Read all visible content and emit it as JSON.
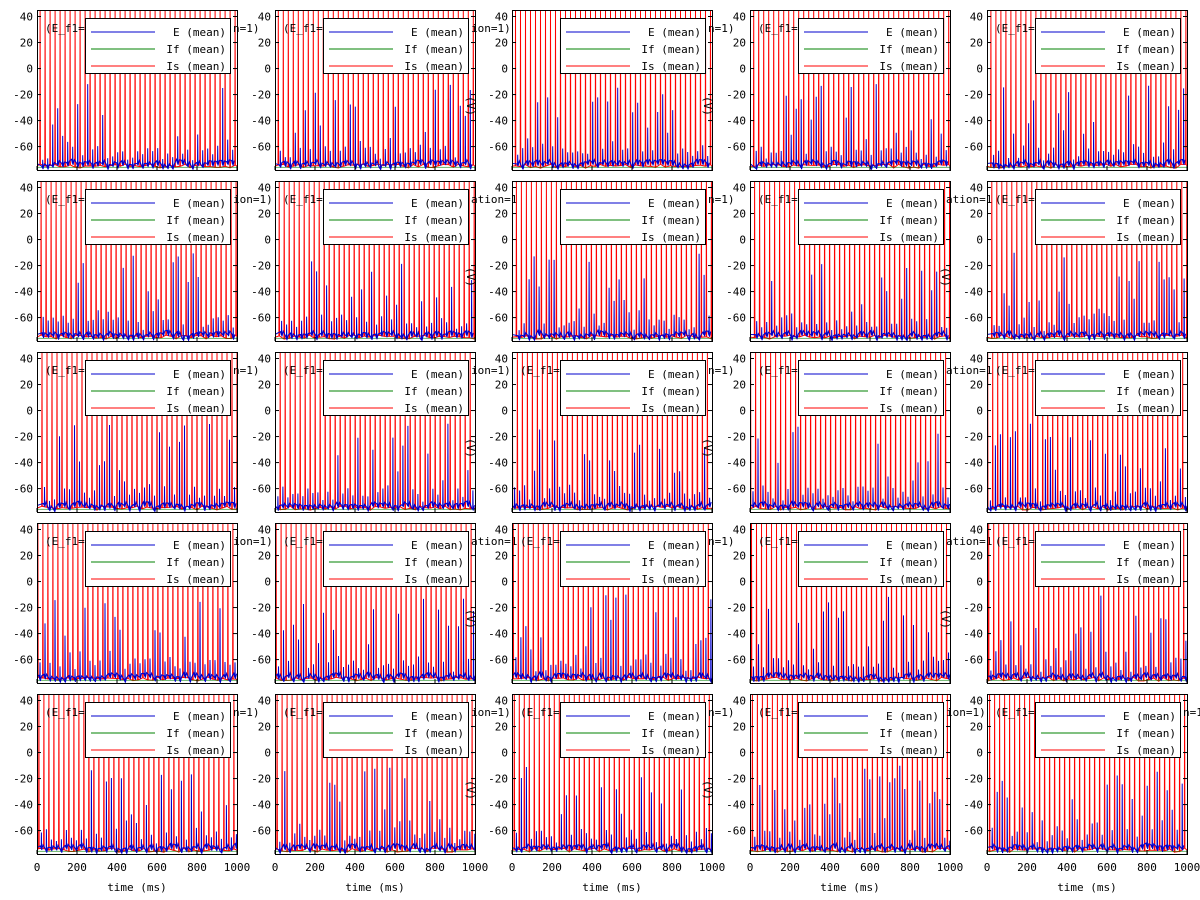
{
  "figure": {
    "grid": {
      "rows": 5,
      "cols": 5
    },
    "colors": {
      "E": "#0000cc",
      "If": "#008000",
      "Is": "#ff0000",
      "frame": "#000000"
    }
  },
  "chart_data": {
    "type": "line",
    "layout": "small-multiples-5x5",
    "xlabel": "time (ms)",
    "ylabel": "",
    "xlim": [
      0,
      1000
    ],
    "ylim": [
      -78,
      45
    ],
    "x_ticks": [
      "0",
      "200",
      "400",
      "600",
      "800",
      "1000"
    ],
    "y_ticks": [
      "40",
      "20",
      "0",
      "-20",
      "-40",
      "-60"
    ],
    "grid": false,
    "legend": {
      "placement": "top-right",
      "entries": [
        "E (mean)",
        "If (mean)",
        "Is (mean)"
      ]
    },
    "series": [
      {
        "name": "E (mean)",
        "description_values": {
          "baseline_mV": -73,
          "spike_peak_range_mV": [
            -60,
            -10
          ],
          "spike_interval_ms": 25
        }
      },
      {
        "name": "If (mean)",
        "description_values": {
          "baseline_mV": -75,
          "visible": false
        }
      },
      {
        "name": "Is (mean)",
        "description_values": {
          "baseline_mV": -75,
          "spike_peak_mV": 45,
          "spike_interval_ms": 25
        }
      }
    ],
    "panels": [
      {
        "row": 0,
        "col": 0,
        "title_left": "(E_f1=",
        "title_right": "n=1)",
        "side_label": ""
      },
      {
        "row": 0,
        "col": 1,
        "title_left": "(E_f1=",
        "title_right": "ion=1)",
        "side_label": "(V)"
      },
      {
        "row": 0,
        "col": 2,
        "title_left": "",
        "title_right": "n=1)",
        "side_label": "(V)"
      },
      {
        "row": 0,
        "col": 3,
        "title_left": "(E_f1=",
        "title_right": "",
        "side_label": ""
      },
      {
        "row": 0,
        "col": 4,
        "title_left": "(E_f1=",
        "title_right": "",
        "side_label": ""
      },
      {
        "row": 1,
        "col": 0,
        "title_left": "(E_f1=",
        "title_right": "ion=1)",
        "side_label": ""
      },
      {
        "row": 1,
        "col": 1,
        "title_left": "(E_f1=",
        "title_right": "ation=1",
        "side_label": "(V)"
      },
      {
        "row": 1,
        "col": 2,
        "title_left": "",
        "title_right": "n=1)",
        "side_label": ""
      },
      {
        "row": 1,
        "col": 3,
        "title_left": "(E_f1=",
        "title_right": "ation=1",
        "side_label": "(V)"
      },
      {
        "row": 1,
        "col": 4,
        "title_left": "(E_f1=",
        "title_right": "",
        "side_label": ""
      },
      {
        "row": 2,
        "col": 0,
        "title_left": "(E_f1=",
        "title_right": "n=1)",
        "side_label": ""
      },
      {
        "row": 2,
        "col": 1,
        "title_left": "(E_f1=",
        "title_right": "ion=1)",
        "side_label": "(V)"
      },
      {
        "row": 2,
        "col": 2,
        "title_left": "(E_f1=",
        "title_right": "n=1)",
        "side_label": "(V)"
      },
      {
        "row": 2,
        "col": 3,
        "title_left": "(E_f1=",
        "title_right": "ation=1",
        "side_label": ""
      },
      {
        "row": 2,
        "col": 4,
        "title_left": "(E_f1=",
        "title_right": "",
        "side_label": ""
      },
      {
        "row": 3,
        "col": 0,
        "title_left": "(E_f1=",
        "title_right": "ion=1)",
        "side_label": ""
      },
      {
        "row": 3,
        "col": 1,
        "title_left": "(E_f1=",
        "title_right": "ation=1",
        "side_label": "(V)"
      },
      {
        "row": 3,
        "col": 2,
        "title_left": "(E_f1=",
        "title_right": "n=1)",
        "side_label": ""
      },
      {
        "row": 3,
        "col": 3,
        "title_left": "(E_f1=",
        "title_right": "ation=1",
        "side_label": "(V)"
      },
      {
        "row": 3,
        "col": 4,
        "title_left": "(E_f1=",
        "title_right": "",
        "side_label": ""
      },
      {
        "row": 4,
        "col": 0,
        "title_left": "(E_f1=",
        "title_right": "n=1)",
        "side_label": ""
      },
      {
        "row": 4,
        "col": 1,
        "title_left": "(E_f1=",
        "title_right": "ion=1)",
        "side_label": "(V)"
      },
      {
        "row": 4,
        "col": 2,
        "title_left": "(E_f1=",
        "title_right": "n=1)",
        "side_label": "(V)"
      },
      {
        "row": 4,
        "col": 3,
        "title_left": "(E_f1=",
        "title_right": "ion=1)",
        "side_label": ""
      },
      {
        "row": 4,
        "col": 4,
        "title_left": "(E_f1=",
        "title_right": "n=1",
        "side_label": ""
      }
    ]
  }
}
